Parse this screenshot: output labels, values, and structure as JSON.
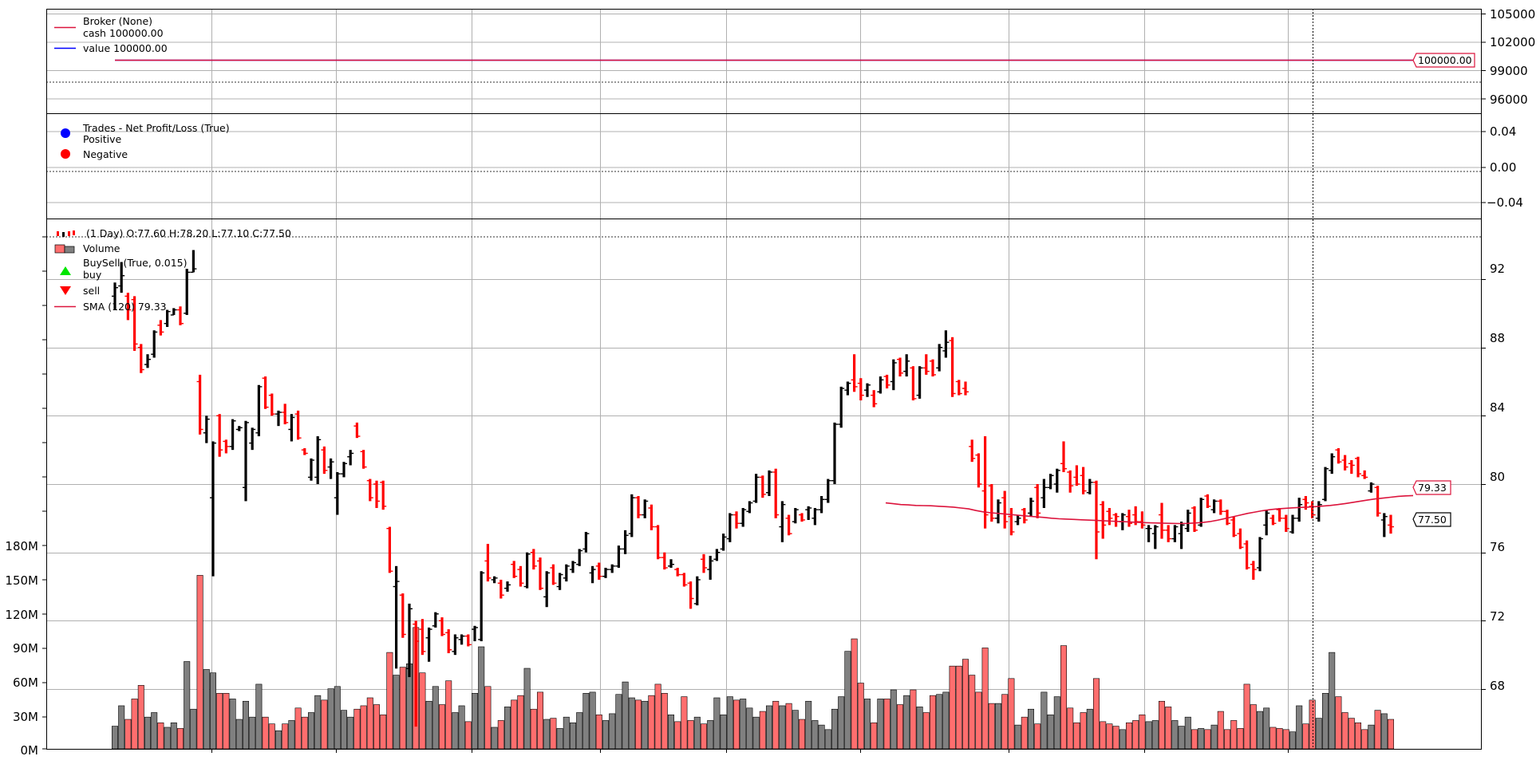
{
  "colors": {
    "up": "#000000",
    "down": "#ff0000",
    "vol_up": "#808080",
    "vol_down": "#ff6e6e",
    "broker_cash": "#dc143c",
    "broker_value": "#0000ff",
    "sma": "#dc143c",
    "trade_pos": "#0000ff",
    "trade_neg": "#ff0000",
    "buy": "#00e600",
    "sell": "#ff0000"
  },
  "broker_panel": {
    "legend": {
      "title": "Broker (None)",
      "cash": "cash 100000.00",
      "value": "value 100000.00"
    },
    "yticks": [
      "105000",
      "102000",
      "99000",
      "96000"
    ],
    "value_tag": "100000.00"
  },
  "trades_panel": {
    "legend": {
      "title": "Trades - Net Profit/Loss (True)",
      "positive": "Positive",
      "negative": "Negative"
    },
    "yticks": [
      "0.04",
      "0.00",
      "−0.04"
    ]
  },
  "price_panel": {
    "legend": {
      "ohlc": "(1 Day) O:77.60 H:78.20 L:77.10 C:77.50",
      "volume": "Volume",
      "buysell": "BuySell (True, 0.015)",
      "buy": "buy",
      "sell": "sell",
      "sma": "SMA (120) 79.33"
    },
    "yticks_right": [
      "92",
      "88",
      "84",
      "80",
      "76",
      "72",
      "68"
    ],
    "yticks_left": [
      "180M",
      "150M",
      "120M",
      "90M",
      "60M",
      "30M",
      "0M"
    ],
    "close_tag": "77.50",
    "sma_tag": "79.33"
  },
  "chart_data": {
    "type": "ohlc",
    "price_ylim": [
      64.5,
      95.5
    ],
    "volume_ylim": [
      0,
      180
    ],
    "volume_unit": "M",
    "broker_ylim": [
      94800,
      105300
    ],
    "bars": [
      [
        91.0,
        91.8,
        90.2,
        91.5,
        20
      ],
      [
        91.6,
        93.0,
        91.2,
        92.2,
        38
      ],
      [
        91.0,
        91.2,
        89.6,
        90.2,
        26
      ],
      [
        90.8,
        91.0,
        87.8,
        88.2,
        44
      ],
      [
        88.0,
        88.2,
        86.5,
        86.7,
        56
      ],
      [
        87.0,
        87.6,
        86.8,
        87.3,
        28
      ],
      [
        87.6,
        89.0,
        87.4,
        88.9,
        32
      ],
      [
        89.3,
        89.6,
        88.7,
        88.9,
        23
      ],
      [
        89.4,
        90.2,
        89.2,
        90.1,
        19
      ],
      [
        89.9,
        90.3,
        89.9,
        90.2,
        23
      ],
      [
        90.2,
        90.4,
        89.3,
        89.4,
        18
      ],
      [
        90.0,
        92.6,
        89.9,
        92.4,
        77
      ],
      [
        92.4,
        93.7,
        92.4,
        92.6,
        35
      ],
      [
        86.0,
        86.4,
        82.9,
        83.2,
        153
      ],
      [
        83.0,
        84.0,
        82.4,
        83.8,
        70
      ],
      [
        79.2,
        82.5,
        74.6,
        82.4,
        67
      ],
      [
        84.0,
        84.1,
        81.6,
        82.0,
        49
      ],
      [
        82.5,
        82.6,
        81.8,
        82.2,
        49
      ],
      [
        82.2,
        83.8,
        82.0,
        83.7,
        44
      ],
      [
        83.2,
        83.4,
        83.1,
        83.3,
        26
      ],
      [
        79.8,
        83.7,
        79.0,
        83.6,
        42
      ],
      [
        82.4,
        83.3,
        82.0,
        83.2,
        28
      ],
      [
        83.0,
        85.8,
        82.8,
        85.7,
        57
      ],
      [
        86.2,
        86.3,
        84.4,
        84.5,
        28
      ],
      [
        85.2,
        85.3,
        84.0,
        84.1,
        22
      ],
      [
        84.1,
        84.3,
        83.4,
        84.2,
        16
      ],
      [
        84.2,
        84.7,
        83.5,
        83.6,
        22
      ],
      [
        83.2,
        84.1,
        82.5,
        83.9,
        25
      ],
      [
        84.1,
        84.3,
        82.6,
        82.7,
        36
      ],
      [
        82.0,
        82.1,
        81.7,
        81.8,
        28
      ],
      [
        80.4,
        81.5,
        80.2,
        81.4,
        32
      ],
      [
        80.4,
        82.8,
        80.0,
        82.6,
        47
      ],
      [
        82.0,
        82.2,
        80.6,
        80.8,
        43
      ],
      [
        81.0,
        81.5,
        80.3,
        81.3,
        53
      ],
      [
        79.2,
        80.7,
        78.2,
        80.6,
        55
      ],
      [
        80.6,
        81.3,
        80.4,
        81.2,
        34
      ],
      [
        81.6,
        82.0,
        81.1,
        81.8,
        28
      ],
      [
        83.4,
        83.6,
        82.7,
        82.8,
        35
      ],
      [
        81.9,
        82.0,
        80.9,
        81.0,
        38
      ],
      [
        80.2,
        80.3,
        79.0,
        79.2,
        45
      ],
      [
        80.0,
        80.2,
        78.6,
        79.0,
        39
      ],
      [
        80.1,
        80.2,
        78.5,
        78.7,
        30
      ],
      [
        77.4,
        77.5,
        74.8,
        74.9,
        85
      ],
      [
        74.0,
        75.2,
        69.2,
        74.3,
        65
      ],
      [
        73.5,
        73.6,
        71.0,
        71.2,
        72
      ],
      [
        69.2,
        73.0,
        68.7,
        72.7,
        75
      ],
      [
        71.8,
        72.0,
        65.8,
        70.8,
        107
      ],
      [
        71.5,
        72.1,
        70.0,
        70.2,
        67
      ],
      [
        71.0,
        71.6,
        69.6,
        71.5,
        42
      ],
      [
        71.7,
        72.5,
        71.6,
        72.4,
        55
      ],
      [
        72.0,
        72.2,
        71.1,
        71.2,
        39
      ],
      [
        71.3,
        71.5,
        70.1,
        70.3,
        60
      ],
      [
        70.2,
        71.2,
        70.0,
        71.0,
        32
      ],
      [
        70.9,
        71.2,
        70.6,
        71.1,
        38
      ],
      [
        71.1,
        71.2,
        70.5,
        70.6,
        24
      ],
      [
        71.5,
        71.7,
        70.8,
        71.6,
        49
      ],
      [
        70.9,
        74.9,
        70.8,
        74.8,
        90
      ],
      [
        75.5,
        76.5,
        74.3,
        74.5,
        55
      ],
      [
        74.4,
        74.6,
        74.2,
        74.5,
        19
      ],
      [
        74.2,
        74.4,
        73.3,
        73.5,
        25
      ],
      [
        73.9,
        74.3,
        73.7,
        74.1,
        37
      ],
      [
        75.3,
        75.5,
        74.5,
        74.6,
        43
      ],
      [
        75.0,
        75.2,
        74.0,
        74.2,
        47
      ],
      [
        74.0,
        76.0,
        73.9,
        75.9,
        71
      ],
      [
        76.0,
        76.2,
        75.0,
        75.2,
        35
      ],
      [
        75.5,
        75.7,
        73.8,
        73.9,
        50
      ],
      [
        73.4,
        74.9,
        72.8,
        74.8,
        26
      ],
      [
        75.1,
        75.3,
        74.1,
        74.2,
        27
      ],
      [
        74.0,
        74.8,
        73.8,
        74.7,
        18
      ],
      [
        74.5,
        75.3,
        74.3,
        75.2,
        28
      ],
      [
        75.0,
        75.5,
        74.8,
        75.4,
        23
      ],
      [
        75.3,
        76.2,
        75.2,
        76.1,
        32
      ],
      [
        76.2,
        77.2,
        76.0,
        77.1,
        49
      ],
      [
        74.8,
        75.2,
        74.2,
        75.0,
        50
      ],
      [
        75.2,
        75.4,
        74.4,
        74.6,
        30
      ],
      [
        74.6,
        75.1,
        74.5,
        75.0,
        25
      ],
      [
        75.0,
        75.3,
        74.8,
        75.2,
        31
      ],
      [
        75.2,
        76.4,
        75.1,
        76.2,
        48
      ],
      [
        76.2,
        77.3,
        75.9,
        77.0,
        59
      ],
      [
        77.1,
        79.4,
        76.9,
        79.2,
        45
      ],
      [
        79.2,
        79.3,
        78.0,
        78.2,
        43
      ],
      [
        78.2,
        79.1,
        78.0,
        79.0,
        42
      ],
      [
        78.6,
        78.8,
        77.3,
        77.5,
        47
      ],
      [
        77.5,
        77.6,
        75.6,
        75.7,
        57
      ],
      [
        75.7,
        76.0,
        75.0,
        75.1,
        49
      ],
      [
        75.2,
        75.6,
        75.1,
        75.3,
        30
      ],
      [
        75.0,
        75.1,
        74.6,
        74.7,
        24
      ],
      [
        74.7,
        74.8,
        74.0,
        74.1,
        46
      ],
      [
        74.2,
        74.3,
        72.7,
        73.3,
        25
      ],
      [
        73.0,
        74.6,
        72.9,
        74.4,
        28
      ],
      [
        75.6,
        75.9,
        74.8,
        75.1,
        22
      ],
      [
        75.0,
        75.8,
        74.4,
        75.5,
        25
      ],
      [
        75.6,
        76.2,
        75.5,
        76.0,
        45
      ],
      [
        76.2,
        77.1,
        76.1,
        76.9,
        30
      ],
      [
        76.8,
        78.3,
        76.6,
        78.2,
        46
      ],
      [
        78.2,
        78.4,
        77.4,
        77.7,
        43
      ],
      [
        77.7,
        78.6,
        77.5,
        78.5,
        44
      ],
      [
        78.4,
        79.0,
        78.3,
        78.9,
        36
      ],
      [
        79.0,
        80.6,
        78.9,
        80.4,
        28
      ],
      [
        80.4,
        80.5,
        79.2,
        79.4,
        33
      ],
      [
        79.5,
        80.8,
        79.3,
        80.7,
        38
      ],
      [
        80.7,
        80.9,
        78.0,
        78.2,
        42
      ],
      [
        77.5,
        79.0,
        76.6,
        78.8,
        38
      ],
      [
        78.0,
        78.2,
        77.0,
        77.1,
        40
      ],
      [
        77.8,
        78.6,
        77.7,
        78.5,
        34
      ],
      [
        78.2,
        78.3,
        77.8,
        77.9,
        26
      ],
      [
        78.5,
        78.7,
        77.9,
        78.6,
        42
      ],
      [
        78.0,
        78.6,
        77.6,
        78.5,
        25
      ],
      [
        78.5,
        79.3,
        78.3,
        79.1,
        21
      ],
      [
        79.1,
        80.3,
        78.9,
        80.2,
        17
      ],
      [
        80.2,
        83.6,
        80.0,
        83.5,
        35
      ],
      [
        83.5,
        85.7,
        83.3,
        85.6,
        46
      ],
      [
        85.5,
        86.0,
        85.2,
        85.9,
        86
      ],
      [
        86.1,
        87.6,
        85.4,
        85.7,
        97
      ],
      [
        85.9,
        86.2,
        84.9,
        85.2,
        58
      ],
      [
        85.5,
        85.9,
        85.1,
        85.8,
        44
      ],
      [
        85.2,
        85.5,
        84.5,
        84.7,
        23
      ],
      [
        85.4,
        86.3,
        85.3,
        86.1,
        44
      ],
      [
        86.3,
        86.4,
        85.6,
        85.8,
        44
      ],
      [
        86.0,
        87.3,
        85.5,
        87.1,
        52
      ],
      [
        87.3,
        87.4,
        86.3,
        86.5,
        39
      ],
      [
        86.6,
        87.6,
        86.3,
        87.2,
        47
      ],
      [
        86.8,
        86.9,
        84.9,
        85.0,
        52
      ],
      [
        85.2,
        86.9,
        85.0,
        86.8,
        37
      ],
      [
        86.8,
        87.6,
        86.4,
        86.6,
        32
      ],
      [
        87.2,
        87.3,
        86.3,
        86.4,
        47
      ],
      [
        86.8,
        88.2,
        86.6,
        88.0,
        48
      ],
      [
        87.8,
        89.0,
        87.4,
        88.3,
        50
      ],
      [
        88.4,
        88.6,
        85.1,
        85.3,
        73
      ],
      [
        86.0,
        86.1,
        85.2,
        85.3,
        73
      ],
      [
        85.6,
        86.0,
        85.2,
        85.4,
        79
      ],
      [
        82.2,
        82.6,
        81.3,
        81.5,
        65
      ],
      [
        81.7,
        81.8,
        79.8,
        80.0,
        50
      ],
      [
        79.6,
        82.8,
        77.4,
        78.2,
        89
      ],
      [
        79.9,
        80.0,
        77.8,
        78.0,
        40
      ],
      [
        78.0,
        79.1,
        77.7,
        78.9,
        40
      ],
      [
        79.2,
        79.6,
        77.4,
        77.8,
        48
      ],
      [
        78.1,
        78.6,
        77.0,
        77.2,
        62
      ],
      [
        77.8,
        78.2,
        77.6,
        78.0,
        21
      ],
      [
        78.5,
        78.6,
        77.7,
        77.9,
        28
      ],
      [
        78.3,
        79.2,
        78.1,
        79.0,
        35
      ],
      [
        79.8,
        80.0,
        78.0,
        78.3,
        22
      ],
      [
        79.2,
        80.3,
        78.6,
        79.8,
        50
      ],
      [
        79.8,
        80.6,
        79.7,
        80.5,
        30
      ],
      [
        80.0,
        80.9,
        79.5,
        80.8,
        46
      ],
      [
        81.2,
        82.5,
        80.7,
        80.9,
        91
      ],
      [
        80.7,
        80.8,
        79.5,
        79.9,
        36
      ],
      [
        80.4,
        81.1,
        79.9,
        80.0,
        23
      ],
      [
        80.5,
        81.0,
        79.4,
        79.6,
        32
      ],
      [
        79.5,
        80.3,
        79.4,
        80.1,
        35
      ],
      [
        80.1,
        80.2,
        75.6,
        77.2,
        62
      ],
      [
        78.8,
        79.0,
        76.8,
        77.6,
        24
      ],
      [
        78.4,
        78.6,
        77.6,
        78.0,
        22
      ],
      [
        78.2,
        78.3,
        77.5,
        78.1,
        20
      ],
      [
        77.8,
        78.3,
        77.3,
        78.2,
        17
      ],
      [
        78.1,
        78.5,
        77.5,
        77.7,
        23
      ],
      [
        78.2,
        78.7,
        77.6,
        77.8,
        25
      ],
      [
        77.8,
        78.4,
        77.4,
        77.6,
        30
      ],
      [
        77.4,
        77.6,
        76.6,
        77.4,
        24
      ],
      [
        77.1,
        77.6,
        76.2,
        77.5,
        25
      ],
      [
        78.2,
        78.9,
        76.8,
        77.3,
        42
      ],
      [
        77.3,
        77.6,
        76.6,
        76.8,
        37
      ],
      [
        76.8,
        77.6,
        76.6,
        77.5,
        25
      ],
      [
        77.1,
        77.8,
        76.2,
        77.6,
        20
      ],
      [
        77.4,
        78.5,
        77.2,
        78.3,
        28
      ],
      [
        78.6,
        78.7,
        77.2,
        77.3,
        17
      ],
      [
        77.6,
        79.2,
        77.5,
        79.1,
        18
      ],
      [
        79.3,
        79.4,
        78.6,
        78.7,
        17
      ],
      [
        78.5,
        79.1,
        78.3,
        79.0,
        21
      ],
      [
        79.0,
        79.1,
        78.2,
        78.4,
        33
      ],
      [
        78.4,
        78.5,
        77.6,
        77.7,
        17
      ],
      [
        77.9,
        78.1,
        76.9,
        77.0,
        25
      ],
      [
        77.1,
        77.4,
        76.2,
        76.3,
        18
      ],
      [
        76.5,
        76.7,
        75.0,
        75.1,
        57
      ],
      [
        75.3,
        75.5,
        74.4,
        75.0,
        39
      ],
      [
        75.1,
        76.9,
        74.9,
        76.8,
        33
      ],
      [
        77.6,
        78.5,
        77.0,
        78.3,
        36
      ],
      [
        78.0,
        78.2,
        77.6,
        77.7,
        19
      ],
      [
        78.5,
        78.6,
        77.8,
        78.0,
        18
      ],
      [
        78.0,
        78.2,
        77.2,
        77.4,
        17
      ],
      [
        77.2,
        78.2,
        77.1,
        78.0,
        15
      ],
      [
        78.0,
        79.2,
        77.8,
        78.8,
        38
      ],
      [
        79.1,
        79.3,
        78.5,
        78.9,
        22
      ],
      [
        78.7,
        79.0,
        78.0,
        78.2,
        43
      ],
      [
        78.0,
        79.0,
        77.8,
        78.8,
        27
      ],
      [
        79.1,
        81.0,
        79.0,
        80.9,
        49
      ],
      [
        80.8,
        81.8,
        80.6,
        81.6,
        85
      ],
      [
        82.0,
        82.1,
        81.2,
        81.3,
        46
      ],
      [
        81.4,
        81.7,
        80.8,
        81.0,
        32
      ],
      [
        81.2,
        81.4,
        80.6,
        81.1,
        27
      ],
      [
        81.5,
        81.6,
        80.4,
        80.6,
        23
      ],
      [
        80.5,
        80.8,
        80.3,
        80.4,
        17
      ],
      [
        79.6,
        80.1,
        79.5,
        80.0,
        21
      ],
      [
        79.8,
        79.9,
        78.1,
        78.3,
        34
      ],
      [
        77.9,
        78.3,
        76.9,
        78.1,
        31
      ],
      [
        77.6,
        78.2,
        77.1,
        77.5,
        26
      ]
    ],
    "sma": {
      "start_index": 120,
      "values": [
        78.9,
        78.85,
        78.8,
        78.78,
        78.75,
        78.74,
        78.73,
        78.7,
        78.68,
        78.65,
        78.6,
        78.55,
        78.45,
        78.37,
        78.32,
        78.28,
        78.24,
        78.2,
        78.16,
        78.12,
        78.08,
        78.05,
        78.0,
        77.97,
        77.95,
        77.93,
        77.91,
        77.89,
        77.87,
        77.85,
        77.83,
        77.81,
        77.79,
        77.77,
        77.75,
        77.73,
        77.72,
        77.71,
        77.7,
        77.69,
        77.7,
        77.72,
        77.75,
        77.8,
        77.88,
        77.98,
        78.08,
        78.18,
        78.28,
        78.36,
        78.44,
        78.5,
        78.55,
        78.58,
        78.61,
        78.63,
        78.65,
        78.68,
        78.71,
        78.75,
        78.8,
        78.86,
        78.93,
        79.0,
        79.07,
        79.13,
        79.18,
        79.23,
        79.28,
        79.31,
        79.33
      ]
    },
    "broker": {
      "cash": 100000.0,
      "value": 100000.0
    },
    "trades": []
  }
}
